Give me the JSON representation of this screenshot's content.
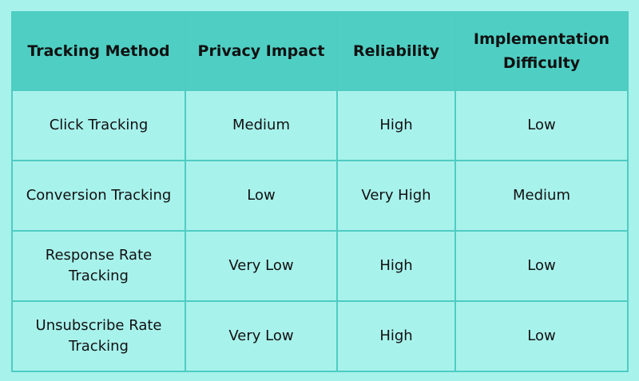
{
  "table": {
    "headers": [
      "Tracking Method",
      "Privacy Impact",
      "Reliability",
      "Implementation Difficulty"
    ],
    "rows": [
      [
        "Click Tracking",
        "Medium",
        "High",
        "Low"
      ],
      [
        "Conversion Tracking",
        "Low",
        "Very High",
        "Medium"
      ],
      [
        "Response Rate Tracking",
        "Very Low",
        "High",
        "Low"
      ],
      [
        "Unsubscribe Rate Tracking",
        "Very Low",
        "High",
        "Low"
      ]
    ]
  },
  "colors": {
    "background": "#a8f2ec",
    "header_bg": "#4fcfc4",
    "border": "#4fccc2",
    "text": "#111111"
  }
}
